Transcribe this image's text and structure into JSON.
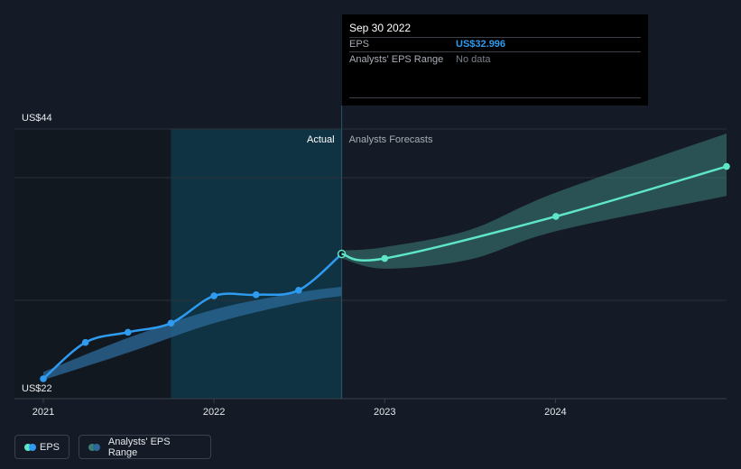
{
  "chart_data": {
    "type": "line",
    "ylim": [
      22,
      44
    ],
    "y_tick_labels": [
      "US$44",
      "US$22"
    ],
    "x_tick_labels": [
      "2021",
      "2022",
      "2023",
      "2024"
    ],
    "region_labels": {
      "actual": "Actual",
      "forecast": "Analysts Forecasts"
    },
    "series": [
      {
        "name": "EPS",
        "color": "#2e9bf0",
        "points": [
          [
            "2020-12-31",
            22.0
          ],
          [
            "2021-03-31",
            25.2
          ],
          [
            "2021-06-30",
            26.1
          ],
          [
            "2021-09-30",
            26.9
          ],
          [
            "2021-12-31",
            29.3
          ],
          [
            "2022-03-31",
            29.4
          ],
          [
            "2022-06-30",
            29.8
          ],
          [
            "2022-09-30",
            32.996
          ]
        ]
      },
      {
        "name": "EPS forecast",
        "color": "#5ee6c8",
        "points": [
          [
            "2022-09-30",
            32.996
          ],
          [
            "2022-12-31",
            32.6
          ],
          [
            "2024-01-01",
            36.3
          ],
          [
            "2024-12-31",
            40.7
          ]
        ]
      }
    ],
    "historical_range_band": {
      "color": "#2c6a9a",
      "x": [
        "2020-12-31",
        "2021-06-30",
        "2021-12-31",
        "2022-06-30",
        "2022-09-30"
      ],
      "low": [
        21.9,
        24.3,
        26.9,
        28.7,
        29.3
      ],
      "high": [
        22.6,
        25.6,
        28.1,
        29.6,
        30.1
      ]
    },
    "forecast_range_band": {
      "color": "#3d7d78",
      "x": [
        "2022-09-30",
        "2022-12-31",
        "2023-06-30",
        "2024-01-01",
        "2024-12-31"
      ],
      "low": [
        32.6,
        31.7,
        32.5,
        35.0,
        38.1
      ],
      "high": [
        33.3,
        33.6,
        35.1,
        38.4,
        43.6
      ]
    },
    "grid": true,
    "legend_position": "bottom-left"
  },
  "tooltip": {
    "date": "Sep 30 2022",
    "rows": [
      {
        "label": "EPS",
        "value": "US$32.996"
      },
      {
        "label": "Analysts' EPS Range",
        "value": "No data"
      }
    ]
  },
  "legend": {
    "items": [
      {
        "label": "EPS",
        "colors": [
          "#5ee6c8",
          "#2e9bf0"
        ]
      },
      {
        "label": "Analysts' EPS Range",
        "colors": [
          "#3d7d78",
          "#2c6a9a"
        ]
      }
    ]
  }
}
